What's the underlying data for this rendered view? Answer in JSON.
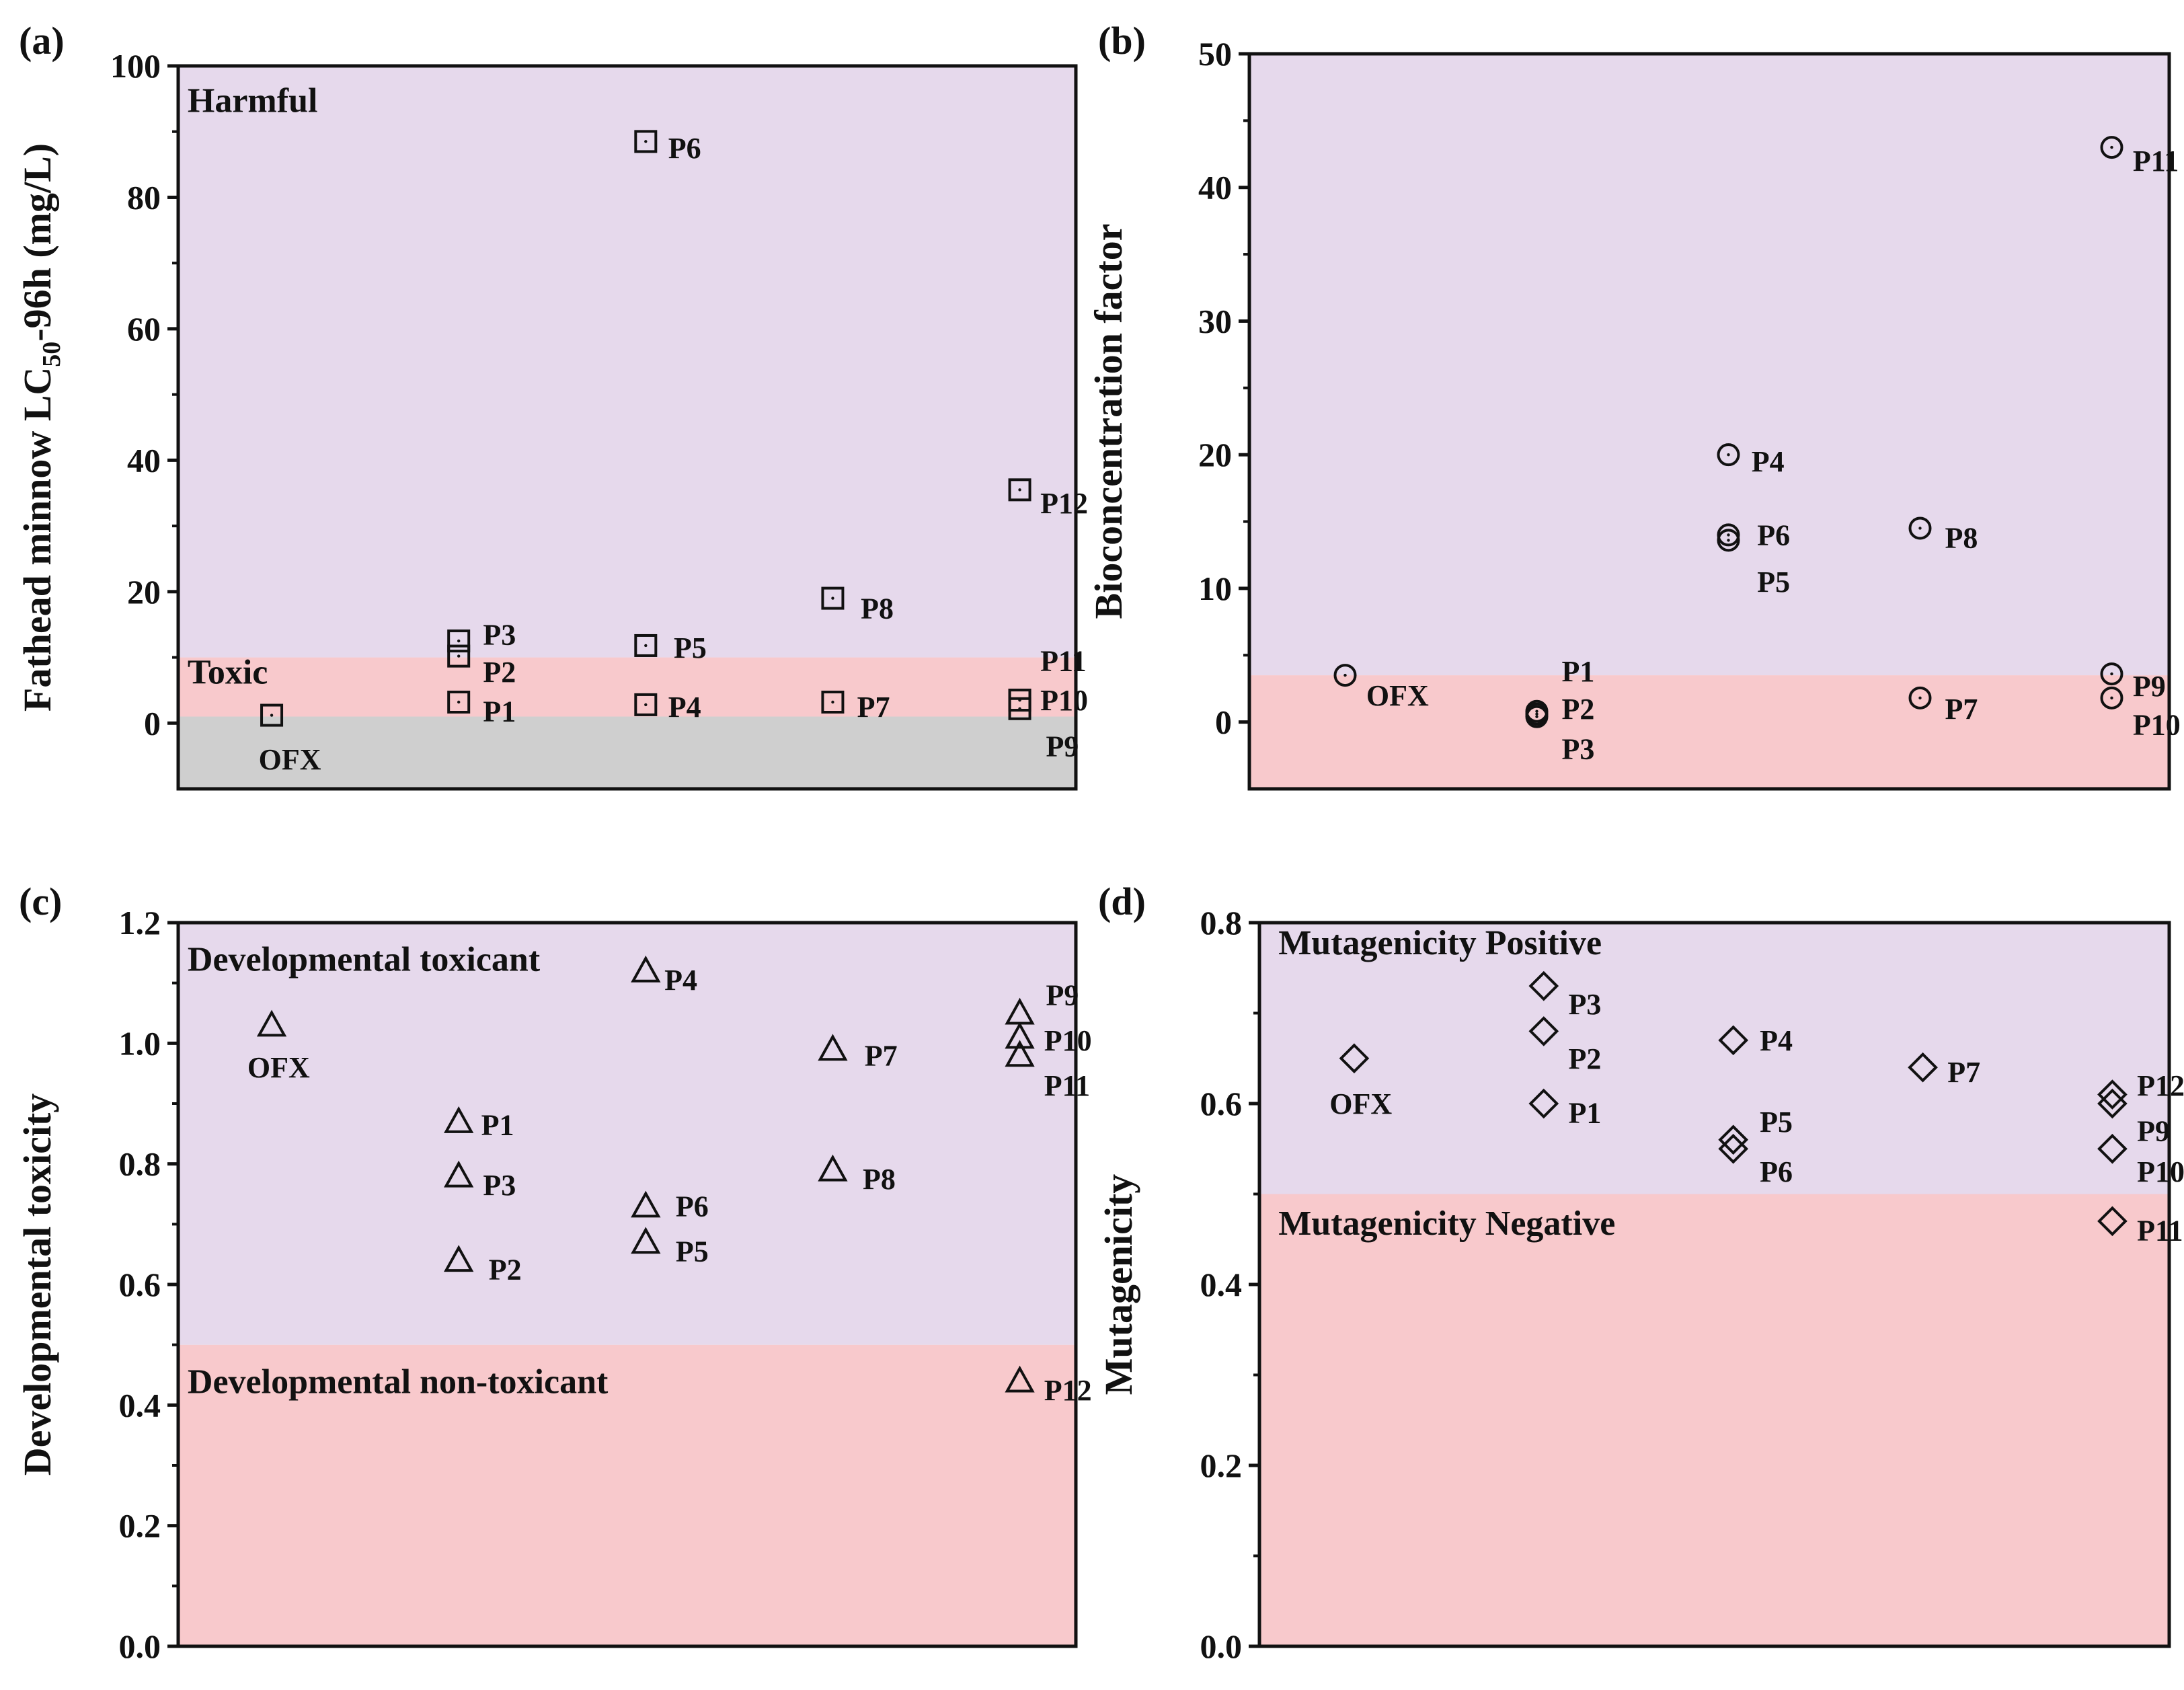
{
  "chart_data": [
    {
      "id": "a",
      "type": "scatter",
      "panel_label": "(a)",
      "ylabel": [
        "Fathead minnow LC",
        "50",
        "-96h (mg/L)"
      ],
      "ylim": [
        -10,
        100
      ],
      "yticks": [
        0,
        20,
        40,
        60,
        80,
        100
      ],
      "ytick_labels": [
        "0",
        "20",
        "40",
        "60",
        "80",
        "100"
      ],
      "xlim": [
        0.5,
        5.3
      ],
      "marker": "square",
      "regions": [
        {
          "from": -10,
          "to": 1,
          "color": "#cfcfcf",
          "label": ""
        },
        {
          "from": 1,
          "to": 10,
          "color": "#f8c9cc",
          "label": "Toxic",
          "label_x": 0.55,
          "label_y": 6
        },
        {
          "from": 10,
          "to": 100,
          "color": "#e6d9ec",
          "label": "Harmful",
          "label_x": 0.55,
          "label_y": 93
        }
      ],
      "points": [
        {
          "name": "OFX",
          "x": 1,
          "y": 1.2,
          "lx": 0.93,
          "ly": -5.5
        },
        {
          "name": "P1",
          "x": 2,
          "y": 3.2,
          "lx": 2.13,
          "ly": 1.8
        },
        {
          "name": "P2",
          "x": 2,
          "y": 10.2,
          "lx": 2.13,
          "ly": 7.8
        },
        {
          "name": "P3",
          "x": 2,
          "y": 12.5,
          "lx": 2.13,
          "ly": 13.5
        },
        {
          "name": "P4",
          "x": 3,
          "y": 2.8,
          "lx": 3.12,
          "ly": 2.5
        },
        {
          "name": "P5",
          "x": 3,
          "y": 11.8,
          "lx": 3.15,
          "ly": 11.5
        },
        {
          "name": "P6",
          "x": 3,
          "y": 88.5,
          "lx": 3.12,
          "ly": 87.5
        },
        {
          "name": "P7",
          "x": 4,
          "y": 3.2,
          "lx": 4.13,
          "ly": 2.5
        },
        {
          "name": "P8",
          "x": 4,
          "y": 19,
          "lx": 4.15,
          "ly": 17.5
        },
        {
          "name": "P9",
          "x": 5,
          "y": 2.2,
          "lx": 5.14,
          "ly": -3.5
        },
        {
          "name": "P10",
          "x": 5,
          "y": 3.5,
          "lx": 5.11,
          "ly": 3.5
        },
        {
          "name": "P11",
          "x": 5,
          "y": 3.5,
          "lx": 5.11,
          "ly": 9.5
        },
        {
          "name": "P12",
          "x": 5,
          "y": 35.5,
          "lx": 5.11,
          "ly": 33.5
        }
      ]
    },
    {
      "id": "b",
      "type": "scatter",
      "panel_label": "(b)",
      "ylabel": [
        "Bioconcentration factor"
      ],
      "ylim": [
        -5,
        50
      ],
      "yticks": [
        0,
        10,
        20,
        30,
        40,
        50
      ],
      "ytick_labels": [
        "0",
        "10",
        "20",
        "30",
        "40",
        "50"
      ],
      "xlim": [
        0.5,
        5.3
      ],
      "marker": "circle",
      "regions": [
        {
          "from": -5,
          "to": 3.5,
          "color": "#f8c9cc",
          "label": ""
        },
        {
          "from": 3.5,
          "to": 50,
          "color": "#e6d9ec",
          "label": ""
        }
      ],
      "points": [
        {
          "name": "OFX",
          "x": 1,
          "y": 3.5,
          "lx": 1.11,
          "ly": 2
        },
        {
          "name": "P1",
          "x": 2,
          "y": 0.8,
          "lx": 2.13,
          "ly": 3.8
        },
        {
          "name": "P2",
          "x": 2,
          "y": 0.6,
          "lx": 2.13,
          "ly": 1
        },
        {
          "name": "P3",
          "x": 2,
          "y": 0.4,
          "lx": 2.13,
          "ly": -2
        },
        {
          "name": "P4",
          "x": 3,
          "y": 20,
          "lx": 3.12,
          "ly": 19.5
        },
        {
          "name": "P5",
          "x": 3,
          "y": 13.6,
          "lx": 3.15,
          "ly": 10.5
        },
        {
          "name": "P6",
          "x": 3,
          "y": 14,
          "lx": 3.15,
          "ly": 14
        },
        {
          "name": "P7",
          "x": 4,
          "y": 1.8,
          "lx": 4.13,
          "ly": 1
        },
        {
          "name": "P8",
          "x": 4,
          "y": 14.5,
          "lx": 4.13,
          "ly": 13.8
        },
        {
          "name": "P9",
          "x": 5,
          "y": 3.6,
          "lx": 5.11,
          "ly": 2.7
        },
        {
          "name": "P10",
          "x": 5,
          "y": 1.8,
          "lx": 5.11,
          "ly": -0.2
        },
        {
          "name": "P11",
          "x": 5,
          "y": 43,
          "lx": 5.11,
          "ly": 42
        }
      ]
    },
    {
      "id": "c",
      "type": "scatter",
      "panel_label": "(c)",
      "ylabel": [
        "Developmental toxicity"
      ],
      "ylim": [
        0,
        1.2
      ],
      "yticks": [
        0,
        0.2,
        0.4,
        0.6,
        0.8,
        1.0,
        1.2
      ],
      "ytick_labels": [
        "0.0",
        "0.2",
        "0.4",
        "0.6",
        "0.8",
        "1.0",
        "1.2"
      ],
      "xlim": [
        0.5,
        5.3
      ],
      "marker": "triangle",
      "regions": [
        {
          "from": 0,
          "to": 0.5,
          "color": "#f8c9cc",
          "label": "Developmental non-toxicant",
          "label_x": 0.55,
          "label_y": 0.42
        },
        {
          "from": 0.5,
          "to": 1.2,
          "color": "#e6d9ec",
          "label": "Developmental toxicant",
          "label_x": 0.55,
          "label_y": 1.12
        }
      ],
      "points": [
        {
          "name": "OFX",
          "x": 1,
          "y": 1.03,
          "lx": 0.87,
          "ly": 0.96
        },
        {
          "name": "P1",
          "x": 2,
          "y": 0.87,
          "lx": 2.12,
          "ly": 0.865
        },
        {
          "name": "P2",
          "x": 2,
          "y": 0.64,
          "lx": 2.16,
          "ly": 0.625
        },
        {
          "name": "P3",
          "x": 2,
          "y": 0.78,
          "lx": 2.13,
          "ly": 0.765
        },
        {
          "name": "P4",
          "x": 3,
          "y": 1.12,
          "lx": 3.1,
          "ly": 1.105
        },
        {
          "name": "P5",
          "x": 3,
          "y": 0.67,
          "lx": 3.16,
          "ly": 0.655
        },
        {
          "name": "P6",
          "x": 3,
          "y": 0.73,
          "lx": 3.16,
          "ly": 0.73
        },
        {
          "name": "P7",
          "x": 4,
          "y": 0.99,
          "lx": 4.17,
          "ly": 0.98
        },
        {
          "name": "P8",
          "x": 4,
          "y": 0.79,
          "lx": 4.16,
          "ly": 0.775
        },
        {
          "name": "P9",
          "x": 5,
          "y": 1.05,
          "lx": 5.14,
          "ly": 1.08
        },
        {
          "name": "P10",
          "x": 5,
          "y": 1.01,
          "lx": 5.13,
          "ly": 1.005
        },
        {
          "name": "P11",
          "x": 5,
          "y": 0.98,
          "lx": 5.13,
          "ly": 0.93
        },
        {
          "name": "P12",
          "x": 5,
          "y": 0.44,
          "lx": 5.13,
          "ly": 0.425
        }
      ]
    },
    {
      "id": "d",
      "type": "scatter",
      "panel_label": "(d)",
      "ylabel": [
        "Mutagenicity"
      ],
      "ylim": [
        0,
        0.8
      ],
      "yticks": [
        0,
        0.2,
        0.4,
        0.6,
        0.8
      ],
      "ytick_labels": [
        "0.0",
        "0.2",
        "0.4",
        "0.6",
        "0.8"
      ],
      "xlim": [
        0.5,
        5.3
      ],
      "marker": "diamond",
      "regions": [
        {
          "from": 0,
          "to": 0.5,
          "color": "#f8c9cc",
          "label": "Mutagenicity Negative",
          "label_x": 0.6,
          "label_y": 0.455
        },
        {
          "from": 0.5,
          "to": 0.8,
          "color": "#e6d9ec",
          "label": "Mutagenicity Positive",
          "label_x": 0.6,
          "label_y": 0.765
        }
      ],
      "points": [
        {
          "name": "OFX",
          "x": 1,
          "y": 0.65,
          "lx": 0.87,
          "ly": 0.6
        },
        {
          "name": "P1",
          "x": 2,
          "y": 0.6,
          "lx": 2.13,
          "ly": 0.59
        },
        {
          "name": "P2",
          "x": 2,
          "y": 0.68,
          "lx": 2.13,
          "ly": 0.65
        },
        {
          "name": "P3",
          "x": 2,
          "y": 0.73,
          "lx": 2.13,
          "ly": 0.71
        },
        {
          "name": "P4",
          "x": 3,
          "y": 0.67,
          "lx": 3.14,
          "ly": 0.67
        },
        {
          "name": "P5",
          "x": 3,
          "y": 0.56,
          "lx": 3.14,
          "ly": 0.58
        },
        {
          "name": "P6",
          "x": 3,
          "y": 0.55,
          "lx": 3.14,
          "ly": 0.525
        },
        {
          "name": "P7",
          "x": 4,
          "y": 0.64,
          "lx": 4.13,
          "ly": 0.635
        },
        {
          "name": "P9",
          "x": 5,
          "y": 0.6,
          "lx": 5.13,
          "ly": 0.57
        },
        {
          "name": "P10",
          "x": 5,
          "y": 0.55,
          "lx": 5.13,
          "ly": 0.525
        },
        {
          "name": "P11",
          "x": 5,
          "y": 0.47,
          "lx": 5.13,
          "ly": 0.46
        },
        {
          "name": "P12",
          "x": 5,
          "y": 0.61,
          "lx": 5.13,
          "ly": 0.62
        }
      ]
    }
  ]
}
